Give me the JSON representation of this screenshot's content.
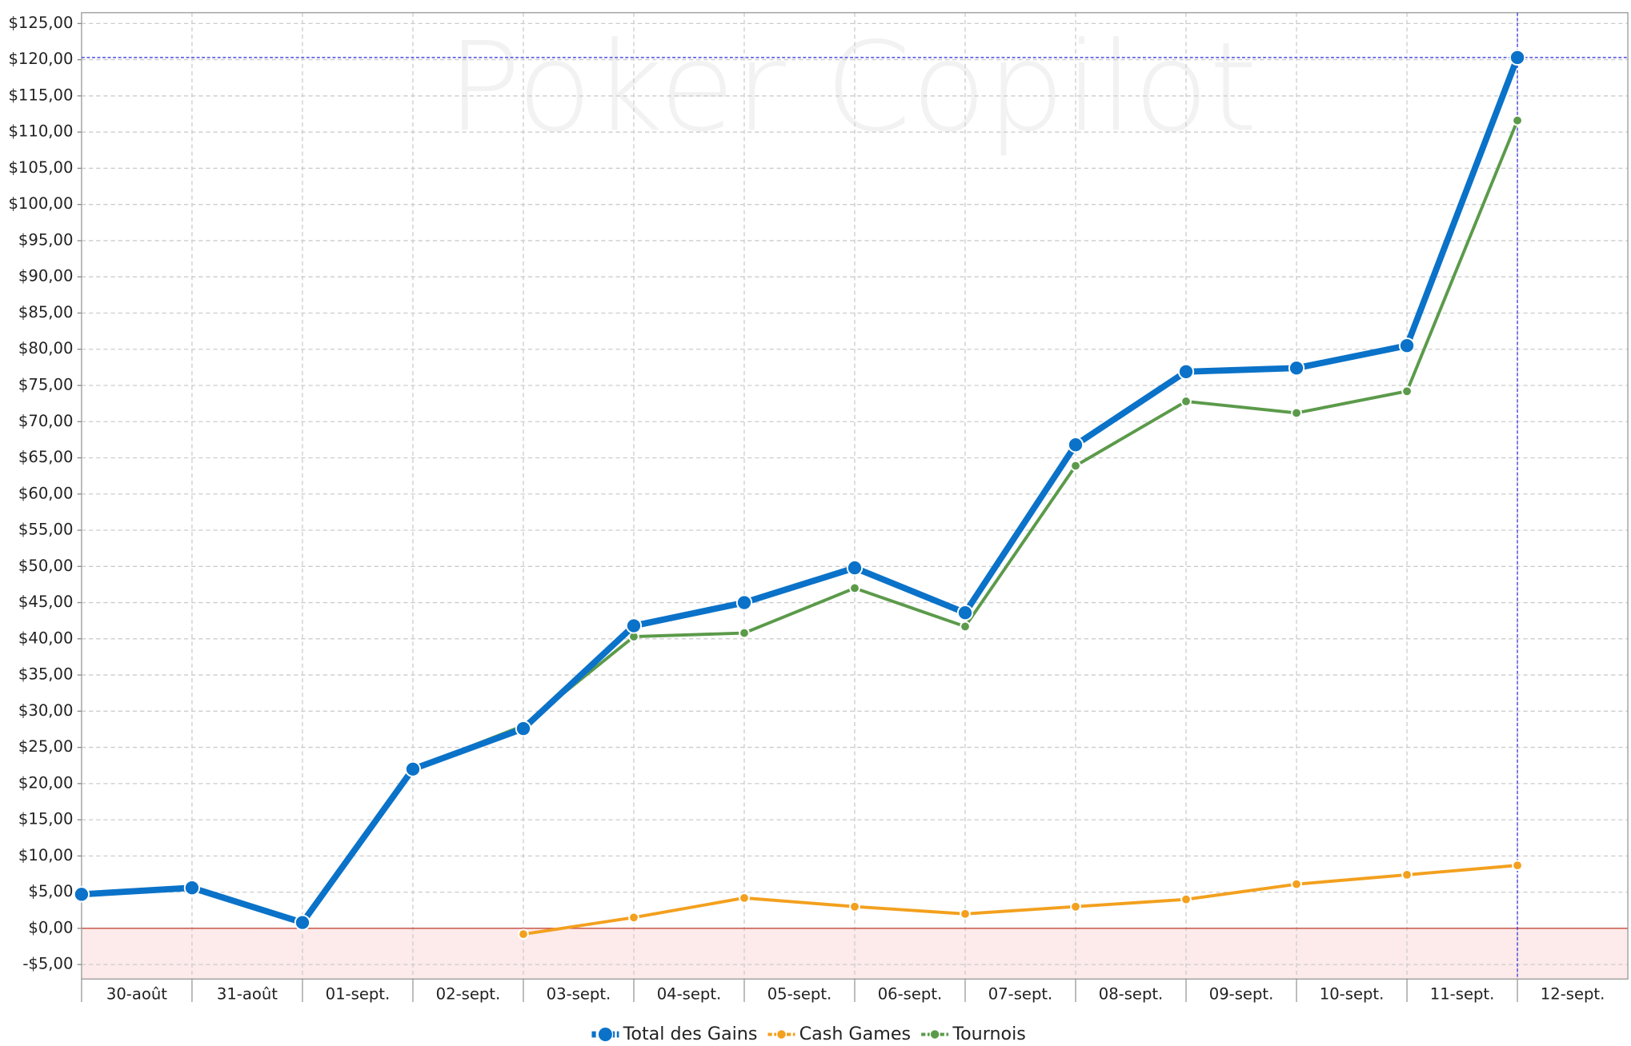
{
  "chart_data": {
    "type": "line",
    "watermark": "Poker Copilot",
    "categories": [
      "30-août",
      "31-août",
      "01-sept.",
      "02-sept.",
      "03-sept.",
      "04-sept.",
      "05-sept.",
      "06-sept.",
      "07-sept.",
      "08-sept.",
      "09-sept.",
      "10-sept.",
      "11-sept.",
      "12-sept."
    ],
    "series": [
      {
        "name": "Total des Gains",
        "color": "#0a72c8",
        "values": [
          4.7,
          5.6,
          0.8,
          22.0,
          27.6,
          41.8,
          45.0,
          49.8,
          43.6,
          66.8,
          76.9,
          77.4,
          80.5,
          120.3
        ]
      },
      {
        "name": "Cash Games",
        "color": "#f3a01e",
        "values": [
          null,
          null,
          null,
          null,
          -0.8,
          1.5,
          4.2,
          3.0,
          2.0,
          3.0,
          4.0,
          6.1,
          7.4,
          8.7
        ]
      },
      {
        "name": "Tournois",
        "color": "#5b9a4a",
        "values": [
          null,
          null,
          null,
          22.0,
          28.0,
          40.3,
          40.8,
          47.0,
          41.7,
          63.9,
          72.8,
          71.2,
          74.2,
          111.6
        ]
      }
    ],
    "ylim": [
      -7,
      126.5
    ],
    "yticks": [
      {
        "value": -5,
        "label": "-$5,00"
      },
      {
        "value": 0,
        "label": "$0,00"
      },
      {
        "value": 5,
        "label": "$5,00"
      },
      {
        "value": 10,
        "label": "$10,00"
      },
      {
        "value": 15,
        "label": "$15,00"
      },
      {
        "value": 20,
        "label": "$20,00"
      },
      {
        "value": 25,
        "label": "$25,00"
      },
      {
        "value": 30,
        "label": "$30,00"
      },
      {
        "value": 35,
        "label": "$35,00"
      },
      {
        "value": 40,
        "label": "$40,00"
      },
      {
        "value": 45,
        "label": "$45,00"
      },
      {
        "value": 50,
        "label": "$50,00"
      },
      {
        "value": 55,
        "label": "$55,00"
      },
      {
        "value": 60,
        "label": "$60,00"
      },
      {
        "value": 65,
        "label": "$65,00"
      },
      {
        "value": 70,
        "label": "$70,00"
      },
      {
        "value": 75,
        "label": "$75,00"
      },
      {
        "value": 80,
        "label": "$80,00"
      },
      {
        "value": 85,
        "label": "$85,00"
      },
      {
        "value": 90,
        "label": "$90,00"
      },
      {
        "value": 95,
        "label": "$95,00"
      },
      {
        "value": 100,
        "label": "$100,00"
      },
      {
        "value": 105,
        "label": "$105,00"
      },
      {
        "value": 110,
        "label": "$110,00"
      },
      {
        "value": 115,
        "label": "$115,00"
      },
      {
        "value": 120,
        "label": "$120,00"
      },
      {
        "value": 125,
        "label": "$125,00"
      }
    ],
    "grid": true,
    "legend": "bottom"
  }
}
